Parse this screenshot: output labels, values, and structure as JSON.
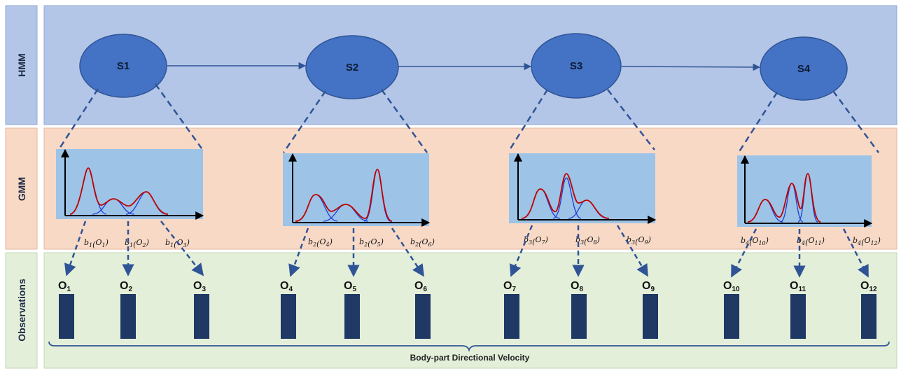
{
  "rows": [
    {
      "label": "HMM",
      "fill": "#b4c6e7"
    },
    {
      "label": "GMM",
      "fill": "#f8d9c6"
    },
    {
      "label": "Observations",
      "fill": "#e3efd9"
    }
  ],
  "states": [
    {
      "label": "S1"
    },
    {
      "label": "S2"
    },
    {
      "label": "S3"
    },
    {
      "label": "S4"
    }
  ],
  "emissions": [
    {
      "labels": [
        {
          "f": "b",
          "fs": "1",
          "o": "O",
          "os": "1"
        },
        {
          "f": "b",
          "fs": "1",
          "o": "O",
          "os": "2"
        },
        {
          "f": "b",
          "fs": "1",
          "o": "O",
          "os": "3"
        }
      ]
    },
    {
      "labels": [
        {
          "f": "b",
          "fs": "2",
          "o": "O",
          "os": "4"
        },
        {
          "f": "b",
          "fs": "2",
          "o": "O",
          "os": "5"
        },
        {
          "f": "b",
          "fs": "2",
          "o": "O",
          "os": "6"
        }
      ]
    },
    {
      "labels": [
        {
          "f": "b",
          "fs": "3",
          "o": "O",
          "os": "7"
        },
        {
          "f": "b",
          "fs": "3",
          "o": "O",
          "os": "8"
        },
        {
          "f": "b",
          "fs": "3",
          "o": "O",
          "os": "9"
        }
      ]
    },
    {
      "labels": [
        {
          "f": "b",
          "fs": "4",
          "o": "O",
          "os": "10"
        },
        {
          "f": "b",
          "fs": "4",
          "o": "O",
          "os": "11"
        },
        {
          "f": "b",
          "fs": "4",
          "o": "O",
          "os": "12"
        }
      ]
    }
  ],
  "observations": [
    {
      "main": "O",
      "sub": "1"
    },
    {
      "main": "O",
      "sub": "2"
    },
    {
      "main": "O",
      "sub": "3"
    },
    {
      "main": "O",
      "sub": "4"
    },
    {
      "main": "O",
      "sub": "5"
    },
    {
      "main": "O",
      "sub": "6"
    },
    {
      "main": "O",
      "sub": "7"
    },
    {
      "main": "O",
      "sub": "8"
    },
    {
      "main": "O",
      "sub": "9"
    },
    {
      "main": "O",
      "sub": "10"
    },
    {
      "main": "O",
      "sub": "11"
    },
    {
      "main": "O",
      "sub": "12"
    }
  ],
  "caption": "Body-part Directional Velocity",
  "colors": {
    "state_fill": "#4472c4",
    "state_stroke": "#2f5496",
    "arrow": "#2f5496",
    "chart_bg": "#9dc3e6",
    "bar": "#1f3864",
    "mixture_curve": "#c00000",
    "component_curve": "#1f3fd6"
  }
}
